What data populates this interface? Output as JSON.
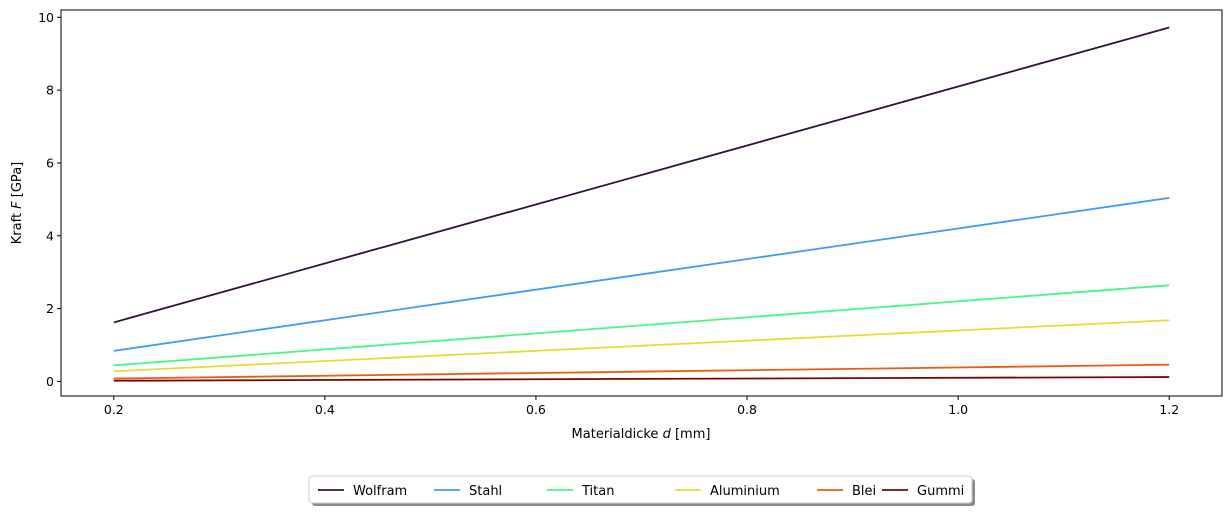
{
  "chart_data": {
    "type": "line",
    "xlabel_prefix": "Materialdicke ",
    "xlabel_var": "d",
    "xlabel_suffix": " [mm]",
    "ylabel_prefix": "Kraft ",
    "ylabel_var": "F",
    "ylabel_suffix": " [GPa]",
    "xlim": [
      0.15,
      1.25
    ],
    "ylim": [
      -0.4,
      10.2
    ],
    "xticks": [
      0.2,
      0.4,
      0.6,
      0.8,
      1.0,
      1.2
    ],
    "xtick_labels": [
      "0.2",
      "0.4",
      "0.6",
      "0.8",
      "1.0",
      "1.2"
    ],
    "yticks": [
      0,
      2,
      4,
      6,
      8,
      10
    ],
    "ytick_labels": [
      "0",
      "2",
      "4",
      "6",
      "8",
      "10"
    ],
    "grid": false,
    "legend_placement": "bottom-center",
    "x": [
      0.2,
      1.2
    ],
    "series": [
      {
        "name": "Wolfram",
        "values": [
          1.62,
          9.72
        ],
        "color": "#30123b"
      },
      {
        "name": "Stahl",
        "values": [
          0.84,
          5.04
        ],
        "color": "#3e9bfe"
      },
      {
        "name": "Titan",
        "values": [
          0.44,
          2.64
        ],
        "color": "#46f884"
      },
      {
        "name": "Aluminium",
        "values": [
          0.28,
          1.68
        ],
        "color": "#e1dd37"
      },
      {
        "name": "Blei",
        "values": [
          0.08,
          0.46
        ],
        "color": "#f05b12"
      },
      {
        "name": "Gummi",
        "values": [
          0.02,
          0.12
        ],
        "color": "#7a0403"
      }
    ]
  }
}
